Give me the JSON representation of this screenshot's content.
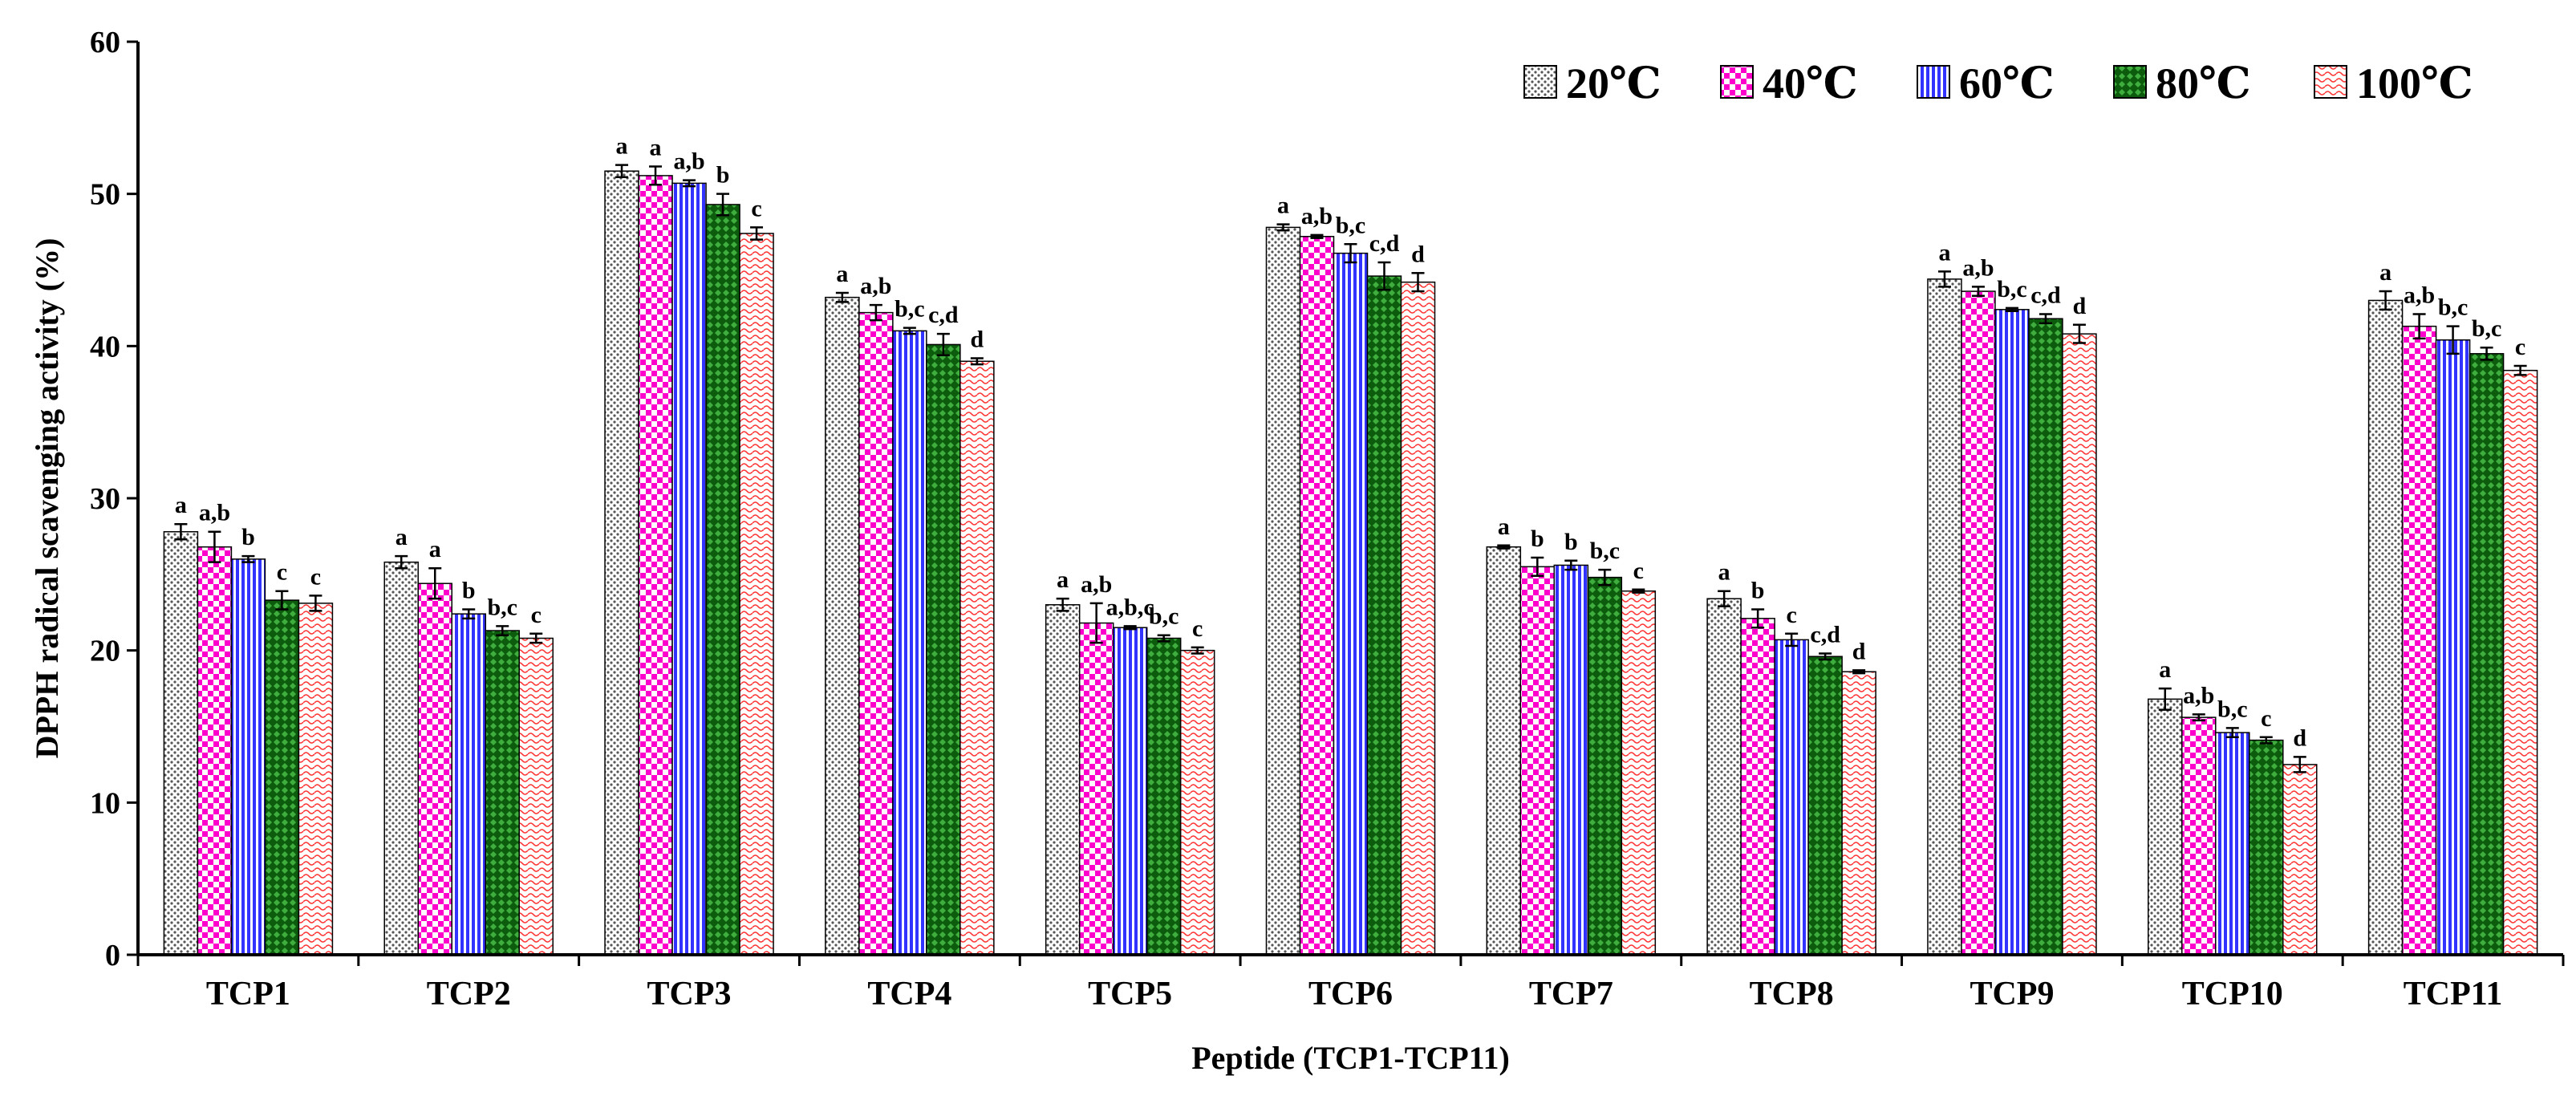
{
  "chart_data": {
    "type": "bar",
    "title": "",
    "xlabel": "Peptide (TCP1-TCP11)",
    "ylabel": "DPPH radical scavenging activity (%)",
    "ylim": [
      0,
      60
    ],
    "yticks": [
      "0",
      "10",
      "20",
      "30",
      "40",
      "50",
      "60"
    ],
    "grid": false,
    "legend_position": "top-right",
    "categories": [
      "TCP1",
      "TCP2",
      "TCP3",
      "TCP4",
      "TCP5",
      "TCP6",
      "TCP7",
      "TCP8",
      "TCP9",
      "TCP10",
      "TCP11"
    ],
    "series": [
      {
        "name": "20℃",
        "pattern": "dots",
        "color": "#c8c8c8",
        "values": [
          27.8,
          25.8,
          51.5,
          43.2,
          23.0,
          47.8,
          26.8,
          23.4,
          44.4,
          16.8,
          43.0
        ],
        "errors": [
          0.5,
          0.4,
          0.4,
          0.3,
          0.4,
          0.2,
          0.1,
          0.5,
          0.5,
          0.7,
          0.6
        ],
        "labels": [
          "a",
          "a",
          "a",
          "a",
          "a",
          "a",
          "a",
          "a",
          "a",
          "a",
          "a"
        ]
      },
      {
        "name": "40℃",
        "pattern": "checker",
        "color": "#ff00cc",
        "values": [
          26.8,
          24.4,
          51.2,
          42.2,
          21.8,
          47.2,
          25.5,
          22.1,
          43.6,
          15.6,
          41.3
        ],
        "errors": [
          1.0,
          1.0,
          0.6,
          0.5,
          1.3,
          0.1,
          0.6,
          0.6,
          0.3,
          0.2,
          0.8
        ],
        "labels": [
          "a,b",
          "a",
          "a",
          "a,b",
          "a,b",
          "a,b",
          "b",
          "b",
          "a,b",
          "a,b",
          "a,b"
        ]
      },
      {
        "name": "60℃",
        "pattern": "vlines",
        "color": "#3333ff",
        "values": [
          26.0,
          22.4,
          50.7,
          41.0,
          21.5,
          46.1,
          25.6,
          20.7,
          42.4,
          14.6,
          40.4
        ],
        "errors": [
          0.2,
          0.3,
          0.2,
          0.2,
          0.1,
          0.6,
          0.3,
          0.4,
          0.1,
          0.3,
          0.9
        ],
        "labels": [
          "b",
          "b",
          "a,b",
          "b,c",
          "a,b,c",
          "b,c",
          "b",
          "c",
          "b,c",
          "b,c",
          "b,c"
        ]
      },
      {
        "name": "80℃",
        "pattern": "diamonds",
        "color": "#1a7a1a",
        "values": [
          23.3,
          21.3,
          49.3,
          40.1,
          20.8,
          44.6,
          24.8,
          19.6,
          41.8,
          14.1,
          39.5
        ],
        "errors": [
          0.6,
          0.3,
          0.7,
          0.7,
          0.2,
          0.9,
          0.5,
          0.2,
          0.3,
          0.2,
          0.4
        ],
        "labels": [
          "c",
          "b,c",
          "b",
          "c,d",
          "b,c",
          "c,d",
          "b,c",
          "c,d",
          "c,d",
          "c",
          "b,c"
        ]
      },
      {
        "name": "100℃",
        "pattern": "waves",
        "color": "#ff3333",
        "values": [
          23.1,
          20.8,
          47.4,
          39.0,
          20.0,
          44.2,
          23.9,
          18.6,
          40.8,
          12.5,
          38.4
        ],
        "errors": [
          0.5,
          0.3,
          0.4,
          0.2,
          0.2,
          0.6,
          0.1,
          0.1,
          0.6,
          0.5,
          0.3
        ],
        "labels": [
          "c",
          "c",
          "c",
          "d",
          "c",
          "d",
          "c",
          "d",
          "d",
          "d",
          "c"
        ]
      }
    ]
  }
}
